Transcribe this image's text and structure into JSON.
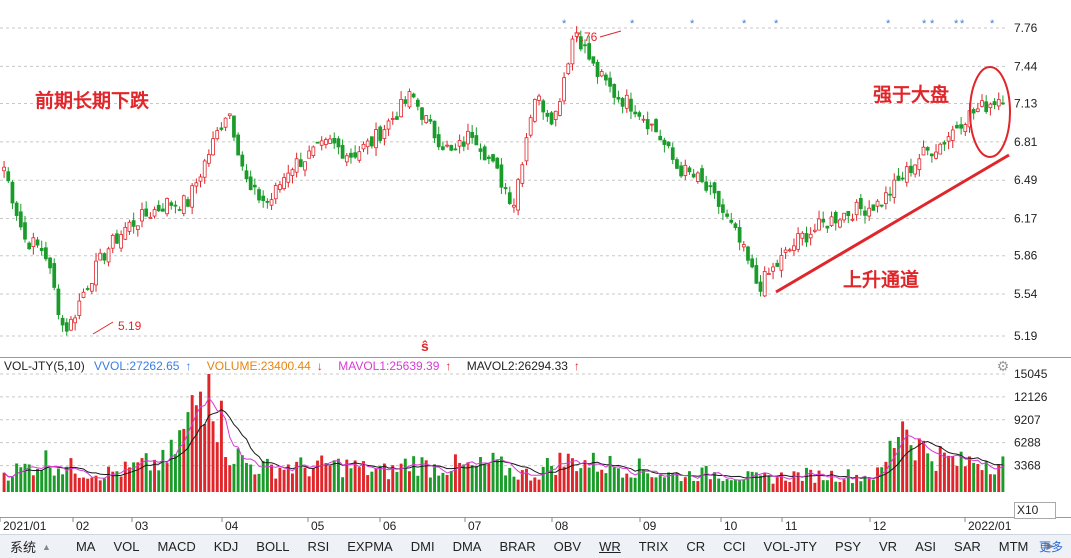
{
  "price_axis": [
    "7.76",
    "7.44",
    "7.13",
    "6.81",
    "6.49",
    "6.17",
    "5.86",
    "5.54",
    "5.19"
  ],
  "volume_axis": [
    "15045",
    "12126",
    "9207",
    "6288",
    "3368",
    "X10"
  ],
  "date_axis": [
    "2021/01",
    "02",
    "03",
    "04",
    "05",
    "06",
    "07",
    "08",
    "09",
    "10",
    "11",
    "12",
    "2022/01"
  ],
  "annotations": {
    "prior_decline": "前期长期下跌",
    "uptrend_channel": "上升通道",
    "stronger_than_market": "强于大盘",
    "low_marker": "5.19",
    "high_marker": "7.76",
    "s_marker": "ŝ"
  },
  "legend": {
    "indicator": "VOL-JTY(5,10)",
    "vvol": "VVOL:27262.65",
    "vvol_arrow": "↑",
    "volume": "VOLUME:23400.44",
    "volume_arrow": "↓",
    "mavol1": "MAVOL1:25639.39",
    "mavol1_arrow": "↑",
    "mavol2": "MAVOL2:26294.33",
    "mavol2_arrow": "↑"
  },
  "volume_unit": "X10",
  "tabs": [
    "系统",
    "MA",
    "VOL",
    "MACD",
    "KDJ",
    "BOLL",
    "RSI",
    "EXPMA",
    "DMI",
    "DMA",
    "BRAR",
    "OBV",
    "WR",
    "TRIX",
    "CR",
    "CCI",
    "VOL-JTY",
    "PSY",
    "VR",
    "ASI",
    "SAR",
    "MTM"
  ],
  "tabs_more": "更多",
  "colors": {
    "up": "#e0262b",
    "down": "#1a9c2a",
    "annotation": "#e0262b",
    "mavol1": "#d63bd6",
    "mavol2": "#1a1a1a",
    "grid": "#c8c8c8"
  },
  "chart_data": {
    "type": "candlestick",
    "price_range": [
      5.19,
      7.76
    ],
    "volume_range": [
      0,
      15045
    ],
    "low_marker": 5.19,
    "high_marker": 7.76,
    "trend_close": [
      6.6,
      6.0,
      5.9,
      5.19,
      5.6,
      5.9,
      6.1,
      6.2,
      6.3,
      6.3,
      6.7,
      7.1,
      6.4,
      6.3,
      6.6,
      6.7,
      6.8,
      6.7,
      6.8,
      7.0,
      7.2,
      6.9,
      6.7,
      6.9,
      6.6,
      6.3,
      7.2,
      7.0,
      7.76,
      7.4,
      7.2,
      7.1,
      6.9,
      6.6,
      6.5,
      6.3,
      6.0,
      5.6,
      5.8,
      6.0,
      6.1,
      6.2,
      6.25,
      6.3,
      6.5,
      6.7,
      6.8,
      7.0,
      7.1,
      7.2
    ],
    "volume_spikes": [
      2500,
      3000,
      4100,
      3200,
      2600,
      2400,
      2800,
      3500,
      3800,
      8500,
      15045,
      5400,
      3500,
      3000,
      3300,
      3100,
      3400,
      3300,
      2700,
      2600,
      3900,
      3100,
      3400,
      3000,
      3600,
      2500,
      2200,
      3800,
      4000,
      3600,
      3400,
      3100,
      2400,
      2100,
      2300,
      2400,
      2100,
      1700,
      1900,
      2200,
      2100,
      2200,
      2000,
      2300,
      9000,
      5600,
      4400,
      3600,
      4300,
      3600
    ]
  }
}
